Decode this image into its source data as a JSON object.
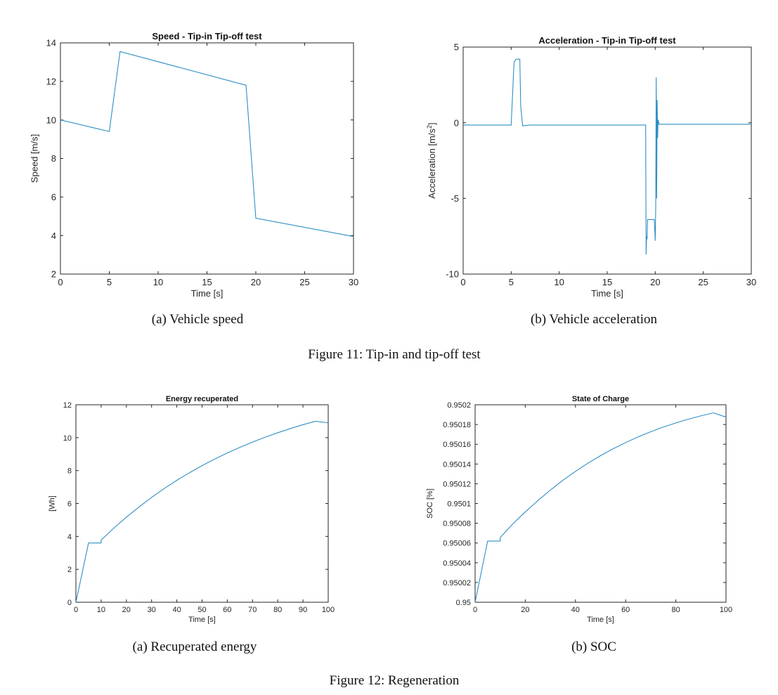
{
  "chart_data": [
    {
      "type": "line",
      "id": "speed",
      "title": "Speed - Tip-in Tip-off test",
      "xlabel": "Time [s]",
      "ylabel": "Speed [m/s]",
      "xlim": [
        0,
        30
      ],
      "ylim": [
        2,
        14
      ],
      "xticks": [
        0,
        5,
        10,
        15,
        20,
        25,
        30
      ],
      "yticks": [
        2,
        4,
        6,
        8,
        10,
        12,
        14
      ],
      "x": [
        0,
        5,
        6.1,
        19,
        20,
        30
      ],
      "y": [
        10,
        9.4,
        13.55,
        11.8,
        4.9,
        3.95
      ],
      "color": "#2f8fc4"
    },
    {
      "type": "line",
      "id": "acceleration",
      "title": "Acceleration - Tip-in Tip-off test",
      "xlabel": "Time [s]",
      "ylabel": "Acceleration [m/s",
      "ylabel_sup": "2",
      "ylabel_tail": "]",
      "xlim": [
        0,
        30
      ],
      "ylim": [
        -10,
        5
      ],
      "xticks": [
        0,
        5,
        10,
        15,
        20,
        25,
        30
      ],
      "yticks": [
        -10,
        -5,
        0,
        5
      ],
      "x": [
        0,
        5.0,
        5.3,
        5.5,
        5.9,
        6.0,
        6.2,
        7,
        19.0,
        19.05,
        19.1,
        19.15,
        19.2,
        19.4,
        19.9,
        20.0,
        20.05,
        20.1,
        20.15,
        20.2,
        20.25,
        20.3,
        20.4,
        21,
        30
      ],
      "y": [
        -0.15,
        -0.15,
        4.0,
        4.2,
        4.2,
        1.0,
        -0.2,
        -0.15,
        -0.15,
        -8.7,
        -7.5,
        -7.7,
        -6.4,
        -6.4,
        -6.4,
        -7.8,
        -5.5,
        3.0,
        -5.0,
        1.5,
        -1.0,
        0.2,
        -0.1,
        -0.1,
        -0.1
      ],
      "color": "#2f8fc4"
    },
    {
      "type": "line",
      "id": "energy",
      "title": "Energy recuperated",
      "xlabel": "Time [s]",
      "ylabel": "[Wh]",
      "xlim": [
        0,
        100
      ],
      "ylim": [
        0,
        12
      ],
      "xticks": [
        0,
        10,
        20,
        30,
        40,
        50,
        60,
        70,
        80,
        90,
        100
      ],
      "yticks": [
        0,
        2,
        4,
        6,
        8,
        10,
        12
      ],
      "x": [
        0,
        5,
        10,
        10,
        15,
        20,
        25,
        30,
        35,
        40,
        45,
        50,
        55,
        60,
        65,
        70,
        75,
        80,
        85,
        90,
        95,
        100
      ],
      "y": [
        0,
        3.6,
        3.6,
        3.78,
        4.5,
        5.17,
        5.79,
        6.37,
        6.91,
        7.41,
        7.87,
        8.3,
        8.7,
        9.07,
        9.41,
        9.73,
        10.03,
        10.3,
        10.55,
        10.79,
        11.0,
        10.9
      ],
      "color": "#2f8fc4"
    },
    {
      "type": "line",
      "id": "soc",
      "title": "State of Charge",
      "xlabel": "Time [s]",
      "ylabel": "SOC [%]",
      "xlim": [
        0,
        100
      ],
      "ylim": [
        0.95,
        0.9502
      ],
      "xticks": [
        0,
        20,
        40,
        60,
        80,
        100
      ],
      "yticks": [
        0.95,
        0.95002,
        0.95004,
        0.95006,
        0.95008,
        0.9501,
        0.95012,
        0.95014,
        0.95016,
        0.95018,
        0.9502
      ],
      "ytick_labels": [
        "0.95",
        "0.95002",
        "0.95004",
        "0.95006",
        "0.95008",
        "0.9501",
        "0.95012",
        "0.95014",
        "0.95016",
        "0.95018",
        "0.9502"
      ],
      "x": [
        0,
        5,
        10,
        10,
        15,
        20,
        25,
        30,
        35,
        40,
        45,
        50,
        55,
        60,
        65,
        70,
        75,
        80,
        85,
        90,
        95,
        100
      ],
      "y": [
        0.95,
        0.950062,
        0.950062,
        0.9500655,
        0.9500793,
        0.9500915,
        0.9501029,
        0.9501136,
        0.9501235,
        0.9501325,
        0.9501409,
        0.9501485,
        0.9501554,
        0.9501617,
        0.9501675,
        0.9501727,
        0.9501774,
        0.9501816,
        0.9501854,
        0.9501888,
        0.9501918,
        0.9501875
      ],
      "color": "#2f8fc4"
    }
  ],
  "captions": {
    "speed": "(a) Vehicle speed",
    "acceleration": "(b) Vehicle acceleration",
    "figure11": "Figure 11: Tip-in and tip-off test",
    "energy": "(a) Recuperated energy",
    "soc": "(b) SOC",
    "figure12": "Figure 12: Regeneration"
  }
}
